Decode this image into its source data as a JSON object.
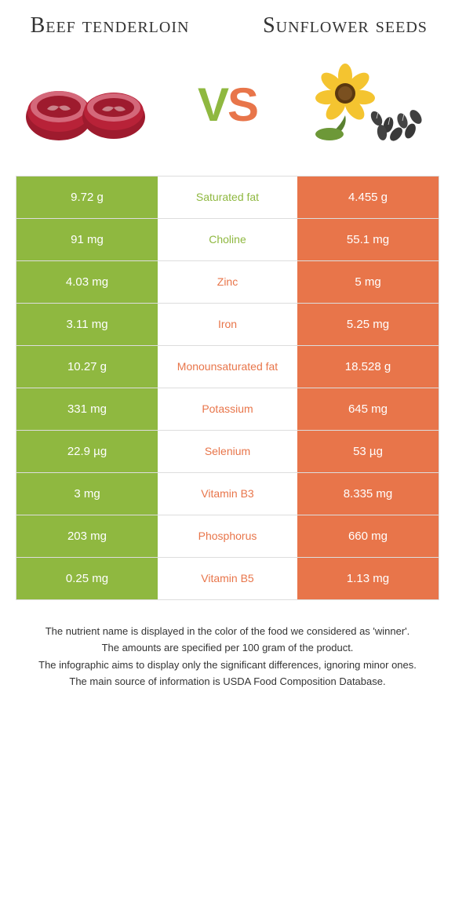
{
  "titles": {
    "left": "Beef tenderloin",
    "right": "Sunflower seeds"
  },
  "vs": {
    "v": "V",
    "s": "S"
  },
  "colors": {
    "green": "#8fb840",
    "orange": "#e8754a",
    "border": "#dddddd",
    "text": "#333333",
    "white": "#ffffff"
  },
  "rows": [
    {
      "left": "9.72 g",
      "label": "Saturated fat",
      "right": "4.455 g",
      "winner": "green"
    },
    {
      "left": "91 mg",
      "label": "Choline",
      "right": "55.1 mg",
      "winner": "green"
    },
    {
      "left": "4.03 mg",
      "label": "Zinc",
      "right": "5 mg",
      "winner": "orange"
    },
    {
      "left": "3.11 mg",
      "label": "Iron",
      "right": "5.25 mg",
      "winner": "orange"
    },
    {
      "left": "10.27 g",
      "label": "Monounsaturated fat",
      "right": "18.528 g",
      "winner": "orange"
    },
    {
      "left": "331 mg",
      "label": "Potassium",
      "right": "645 mg",
      "winner": "orange"
    },
    {
      "left": "22.9 µg",
      "label": "Selenium",
      "right": "53 µg",
      "winner": "orange"
    },
    {
      "left": "3 mg",
      "label": "Vitamin B3",
      "right": "8.335 mg",
      "winner": "orange"
    },
    {
      "left": "203 mg",
      "label": "Phosphorus",
      "right": "660 mg",
      "winner": "orange"
    },
    {
      "left": "0.25 mg",
      "label": "Vitamin B5",
      "right": "1.13 mg",
      "winner": "orange"
    }
  ],
  "footer": [
    "The nutrient name is displayed in the color of the food we considered as 'winner'.",
    "The amounts are specified per 100 gram of the product.",
    "The infographic aims to display only the significant differences, ignoring minor ones.",
    "The main source of information is USDA Food Composition Database."
  ]
}
